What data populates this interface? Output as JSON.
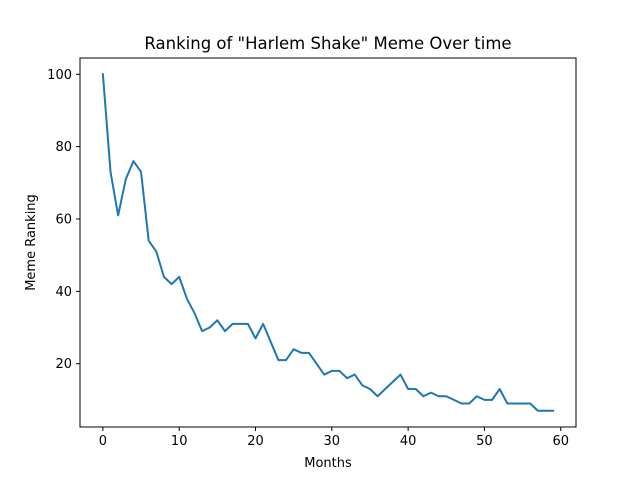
{
  "chart_data": {
    "type": "line",
    "title": "Ranking of \"Harlem Shake\" Meme Over time",
    "xlabel": "Months",
    "ylabel": "Meme Ranking",
    "xlim": [
      -3,
      62
    ],
    "ylim": [
      2.5,
      104.5
    ],
    "xticks": [
      0,
      10,
      20,
      30,
      40,
      50,
      60
    ],
    "yticks": [
      20,
      40,
      60,
      80,
      100
    ],
    "grid": false,
    "series": [
      {
        "color": "#1f77b4",
        "x": [
          0,
          1,
          2,
          3,
          4,
          5,
          6,
          7,
          8,
          9,
          10,
          11,
          12,
          13,
          14,
          15,
          16,
          17,
          18,
          19,
          20,
          21,
          22,
          23,
          24,
          25,
          26,
          27,
          28,
          29,
          30,
          31,
          32,
          33,
          34,
          35,
          36,
          37,
          38,
          39,
          40,
          41,
          42,
          43,
          44,
          45,
          46,
          47,
          48,
          49,
          50,
          51,
          52,
          53,
          54,
          55,
          56,
          57,
          58,
          59
        ],
        "values": [
          100,
          73,
          61,
          71,
          76,
          73,
          54,
          51,
          44,
          42,
          44,
          38,
          34,
          29,
          30,
          32,
          29,
          31,
          31,
          31,
          27,
          31,
          26,
          21,
          21,
          24,
          23,
          23,
          20,
          17,
          18,
          18,
          16,
          17,
          14,
          13,
          11,
          13,
          15,
          17,
          13,
          13,
          11,
          12,
          11,
          11,
          10,
          9,
          9,
          11,
          10,
          10,
          13,
          9,
          9,
          9,
          9,
          7,
          7,
          7
        ]
      }
    ]
  }
}
